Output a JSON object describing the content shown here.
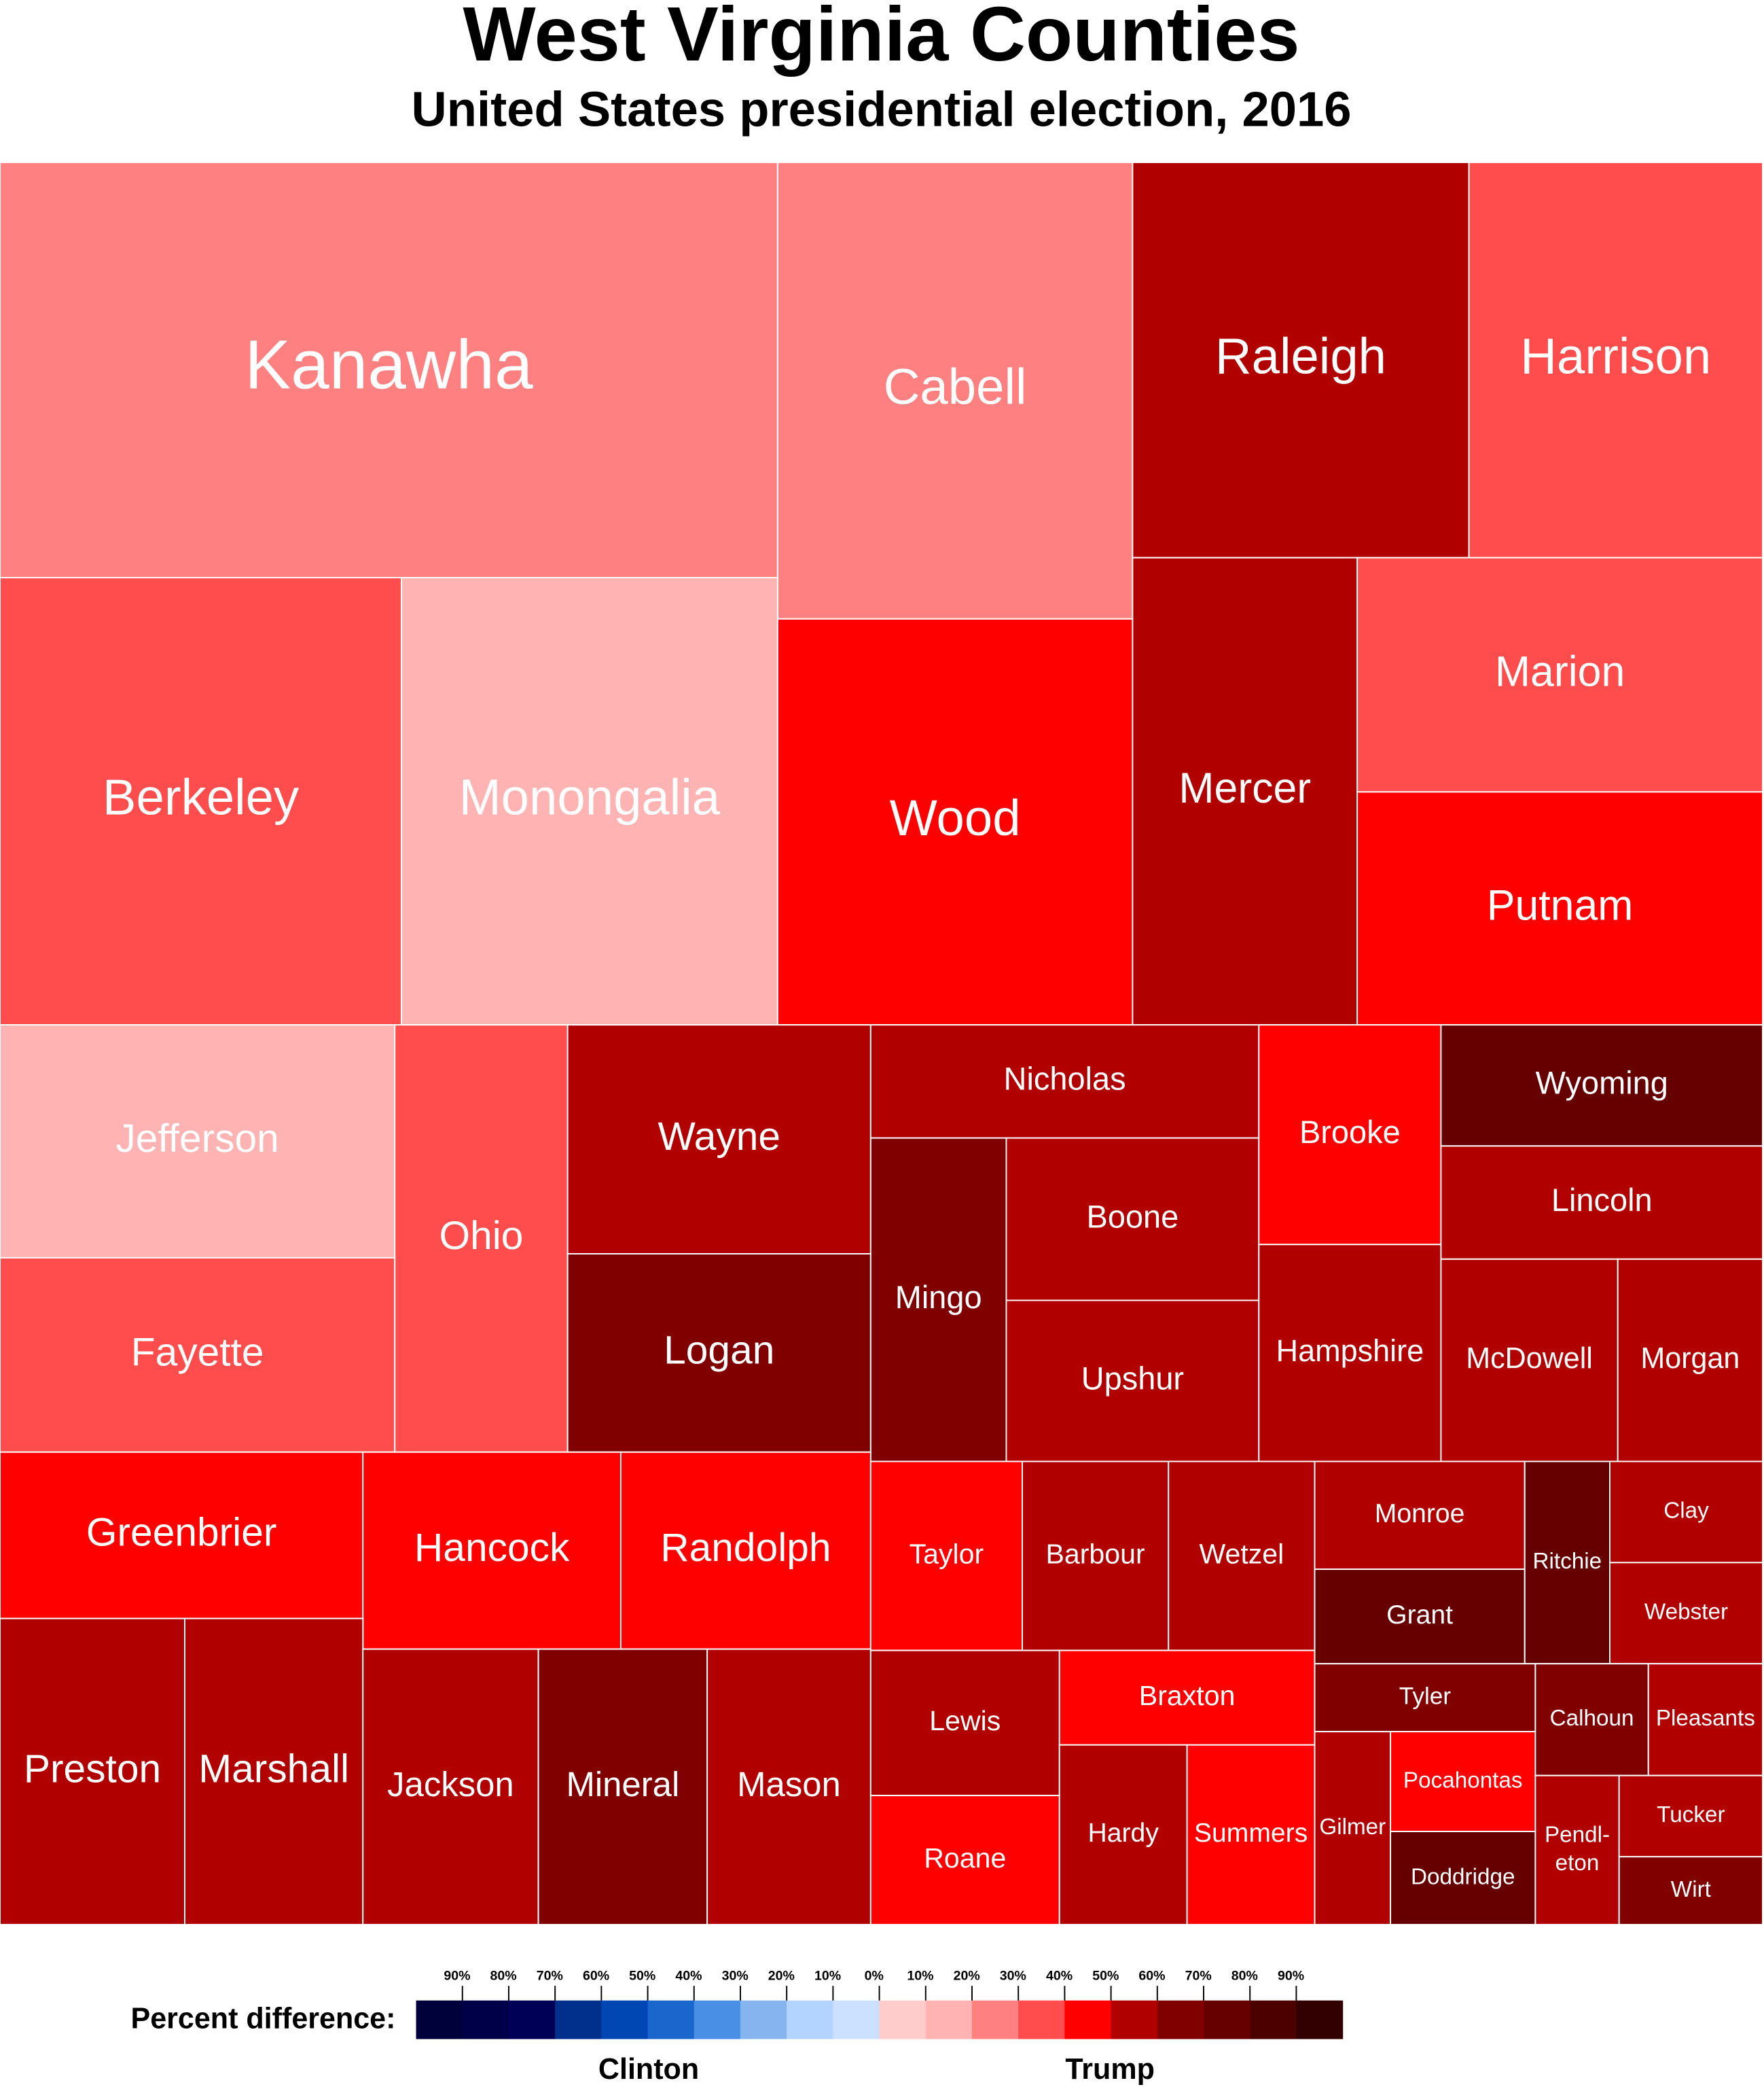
{
  "header": {
    "title": "West Virginia Counties",
    "subtitle": "United States presidential election, 2016"
  },
  "nodes": [
    {
      "label": "Kanawha",
      "color": "#ff8080"
    },
    {
      "label": "Cabell",
      "color": "#ff8080"
    },
    {
      "label": "Raleigh",
      "color": "#b00000"
    },
    {
      "label": "Harrison",
      "color": "#ff4d4d"
    },
    {
      "label": "Berkeley",
      "color": "#ff4d4d"
    },
    {
      "label": "Monongalia",
      "color": "#ffb3b3"
    },
    {
      "label": "Wood",
      "color": "#ff0000"
    },
    {
      "label": "Mercer",
      "color": "#b00000"
    },
    {
      "label": "Marion",
      "color": "#ff4d4d"
    },
    {
      "label": "Putnam",
      "color": "#ff0000"
    },
    {
      "label": "Jefferson",
      "color": "#ffb3b3"
    },
    {
      "label": "Fayette",
      "color": "#ff4d4d"
    },
    {
      "label": "Ohio",
      "color": "#ff4d4d"
    },
    {
      "label": "Wayne",
      "color": "#b00000"
    },
    {
      "label": "Logan",
      "color": "#800000"
    },
    {
      "label": "Nicholas",
      "color": "#b00000"
    },
    {
      "label": "Mingo",
      "color": "#800000"
    },
    {
      "label": "Boone",
      "color": "#b00000"
    },
    {
      "label": "Upshur",
      "color": "#b00000"
    },
    {
      "label": "Brooke",
      "color": "#ff0000"
    },
    {
      "label": "Hampshire",
      "color": "#b00000"
    },
    {
      "label": "Wyoming",
      "color": "#660000"
    },
    {
      "label": "Lincoln",
      "color": "#b00000"
    },
    {
      "label": "McDowell",
      "color": "#b00000"
    },
    {
      "label": "Morgan",
      "color": "#b00000"
    },
    {
      "label": "Greenbrier",
      "color": "#ff0000"
    },
    {
      "label": "Hancock",
      "color": "#ff0000"
    },
    {
      "label": "Randolph",
      "color": "#ff0000"
    },
    {
      "label": "Preston",
      "color": "#b00000"
    },
    {
      "label": "Marshall",
      "color": "#b00000"
    },
    {
      "label": "Jackson",
      "color": "#b00000"
    },
    {
      "label": "Mineral",
      "color": "#800000"
    },
    {
      "label": "Mason",
      "color": "#b00000"
    },
    {
      "label": "Taylor",
      "color": "#ff0000"
    },
    {
      "label": "Barbour",
      "color": "#b00000"
    },
    {
      "label": "Wetzel",
      "color": "#b00000"
    },
    {
      "label": "Lewis",
      "color": "#b00000"
    },
    {
      "label": "Roane",
      "color": "#ff0000"
    },
    {
      "label": "Braxton",
      "color": "#ff0000"
    },
    {
      "label": "Hardy",
      "color": "#b00000"
    },
    {
      "label": "Summers",
      "color": "#ff0000"
    },
    {
      "label": "Monroe",
      "color": "#b00000"
    },
    {
      "label": "Grant",
      "color": "#660000"
    },
    {
      "label": "Ritchie",
      "color": "#660000"
    },
    {
      "label": "Clay",
      "color": "#b00000"
    },
    {
      "label": "Webster",
      "color": "#b00000"
    },
    {
      "label": "Tyler",
      "color": "#800000"
    },
    {
      "label": "Gilmer",
      "color": "#b00000"
    },
    {
      "label": "Pocahontas",
      "color": "#ff0000"
    },
    {
      "label": "Doddridge",
      "color": "#660000"
    },
    {
      "label": "Calhoun",
      "color": "#800000"
    },
    {
      "label": "Pleasants",
      "color": "#b00000"
    },
    {
      "lines": [
        "Pendl-",
        "eton"
      ],
      "color": "#b00000"
    },
    {
      "label": "Tucker",
      "color": "#b00000"
    },
    {
      "label": "Wirt",
      "color": "#800000"
    }
  ],
  "legend": {
    "title": "Percent difference:",
    "left": "Clinton",
    "right": "Trump",
    "colors": [
      "#00003a",
      "#000048",
      "#000056",
      "#00308c",
      "#0047b3",
      "#1a66cc",
      "#4a8fe6",
      "#85b4ef",
      "#b3d4ff",
      "#cce0ff",
      "#ffcccc",
      "#ffb3b3",
      "#ff8080",
      "#ff4d4d",
      "#ff0000",
      "#b00000",
      "#800000",
      "#660000",
      "#4d0000",
      "#330000"
    ],
    "ticks": [
      "90%",
      "80%",
      "70%",
      "60%",
      "50%",
      "40%",
      "30%",
      "20%",
      "10%",
      "0%",
      "10%",
      "20%",
      "30%",
      "40%",
      "50%",
      "60%",
      "70%",
      "80%",
      "90%"
    ]
  }
}
